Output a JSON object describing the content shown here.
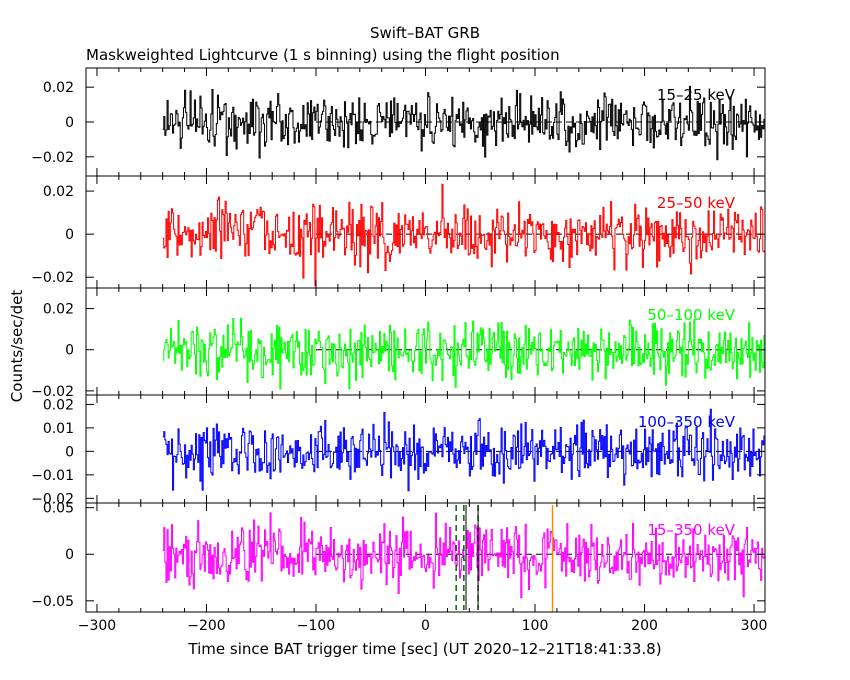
{
  "chart_data": {
    "type": "line",
    "title": "Swift–BAT GRB",
    "subtitle": "Maskweighted Lightcurve (1 s binning) using the flight position",
    "xlabel": "Time since BAT trigger time [sec] (UT 2020–12–21T18:41:33.8)",
    "ylabel": "Counts/sec/det",
    "xlim": [
      -310,
      310
    ],
    "xticks": [
      -300,
      -200,
      -100,
      0,
      100,
      200,
      300
    ],
    "xtick_labels": [
      "−300",
      "−200",
      "−100",
      "0",
      "100",
      "200",
      "300"
    ],
    "data_start": -240,
    "data_end": 310,
    "binning_sec": 1,
    "panels": [
      {
        "name": "15–25 keV",
        "color": "#000000",
        "ylim": [
          -0.031,
          0.031
        ],
        "noise_sigma": 0.0078,
        "yticks": [
          0.02,
          0,
          -0.02
        ],
        "ytick_labels": [
          "0.02",
          "0",
          "−0.02"
        ]
      },
      {
        "name": "25–50 keV",
        "color": "#ff0000",
        "ylim": [
          -0.025,
          0.027
        ],
        "noise_sigma": 0.0068,
        "yticks": [
          0.02,
          0,
          -0.02
        ],
        "ytick_labels": [
          "0.02",
          "0",
          "−0.02"
        ]
      },
      {
        "name": "50–100 keV",
        "color": "#00ff00",
        "ylim": [
          -0.022,
          0.03
        ],
        "noise_sigma": 0.0068,
        "yticks": [
          0.02,
          0,
          -0.02
        ],
        "ytick_labels": [
          "0.02",
          "0",
          "−0.02"
        ]
      },
      {
        "name": "100–350 keV",
        "color": "#0000ff",
        "ylim": [
          -0.022,
          0.024
        ],
        "noise_sigma": 0.0062,
        "yticks": [
          0.02,
          0.01,
          0,
          -0.01,
          -0.02
        ],
        "ytick_labels": [
          "0.02",
          "0.01",
          "0",
          "−0.01",
          "−0.02"
        ]
      },
      {
        "name": "15–350 keV",
        "color": "#ff00ff",
        "ylim": [
          -0.062,
          0.055
        ],
        "noise_sigma": 0.016,
        "yticks": [
          0.05,
          0,
          -0.05
        ],
        "ytick_labels": [
          "0.05",
          "0",
          "−0.05"
        ]
      }
    ],
    "markers": {
      "dashed_green": [
        28,
        35,
        48
      ],
      "solid_black": [
        37,
        48
      ],
      "orange": [
        116
      ]
    },
    "grid": false,
    "legend": "none"
  }
}
